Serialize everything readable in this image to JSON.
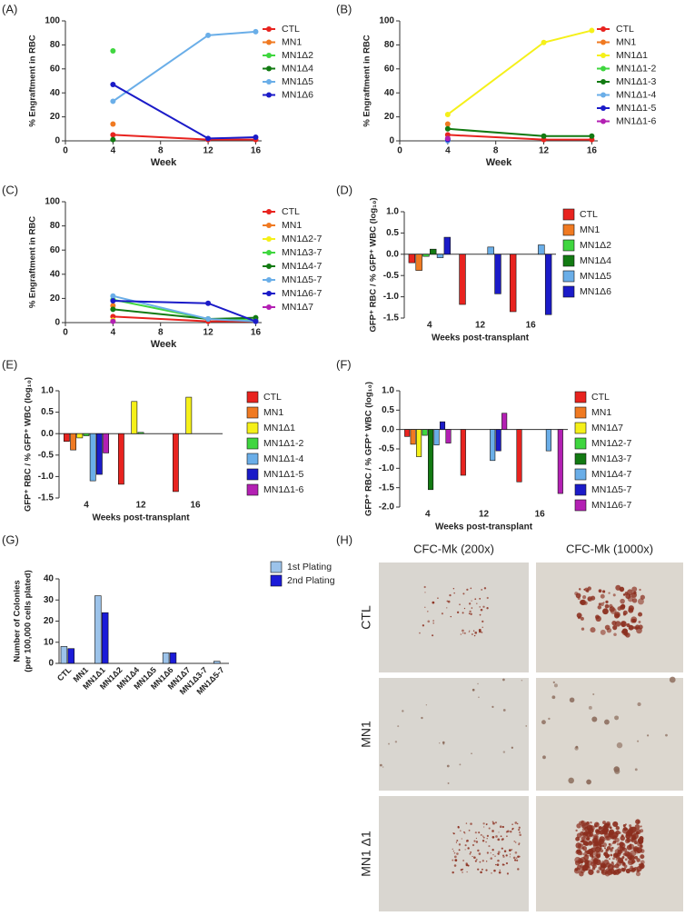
{
  "chart_data": [
    {
      "type": "line",
      "label": "(A)",
      "xlabel": "Week",
      "ylabel": "% Engraftment in RBC",
      "x": [
        4,
        12,
        16
      ],
      "xlim": [
        0,
        16.5
      ],
      "xticks": [
        0,
        4,
        8,
        12,
        16
      ],
      "ylim": [
        0,
        100
      ],
      "yticks": [
        0,
        20,
        40,
        60,
        80,
        100
      ],
      "series": [
        {
          "name": "CTL",
          "color": "#e8231f",
          "values": [
            5,
            1,
            1
          ]
        },
        {
          "name": "MN1",
          "color": "#f07a22",
          "values": [
            14,
            null,
            null
          ]
        },
        {
          "name": "MN1Δ2",
          "color": "#3fd63f",
          "values": [
            75,
            null,
            null
          ]
        },
        {
          "name": "MN1Δ4",
          "color": "#127a12",
          "values": [
            1,
            null,
            null
          ]
        },
        {
          "name": "MN1Δ5",
          "color": "#6aaee8",
          "values": [
            33,
            88,
            91
          ]
        },
        {
          "name": "MN1Δ6",
          "color": "#1b1bc8",
          "values": [
            47,
            2,
            3
          ]
        }
      ]
    },
    {
      "type": "line",
      "label": "(B)",
      "xlabel": "Week",
      "ylabel": "% Engraftment in RBC",
      "x": [
        4,
        12,
        16
      ],
      "xlim": [
        0,
        16.5
      ],
      "xticks": [
        0,
        4,
        8,
        12,
        16
      ],
      "ylim": [
        0,
        100
      ],
      "yticks": [
        0,
        20,
        40,
        60,
        80,
        100
      ],
      "series": [
        {
          "name": "CTL",
          "color": "#e8231f",
          "values": [
            5,
            1,
            1
          ]
        },
        {
          "name": "MN1",
          "color": "#f07a22",
          "values": [
            14,
            null,
            null
          ]
        },
        {
          "name": "MN1Δ1",
          "color": "#f5f019",
          "values": [
            22,
            82,
            92
          ]
        },
        {
          "name": "MN1Δ1-2",
          "color": "#3fd63f",
          "values": [
            2,
            null,
            null
          ]
        },
        {
          "name": "MN1Δ1-3",
          "color": "#127a12",
          "values": [
            10,
            4,
            4
          ]
        },
        {
          "name": "MN1Δ1-4",
          "color": "#6aaee8",
          "values": [
            0,
            null,
            null
          ]
        },
        {
          "name": "MN1Δ1-5",
          "color": "#1b1bc8",
          "values": [
            1,
            null,
            null
          ]
        },
        {
          "name": "MN1Δ1-6",
          "color": "#b320b3",
          "values": [
            2,
            null,
            null
          ]
        }
      ]
    },
    {
      "type": "line",
      "label": "(C)",
      "xlabel": "Week",
      "ylabel": "% Engraftment in RBC",
      "x": [
        4,
        12,
        16
      ],
      "xlim": [
        0,
        16.5
      ],
      "xticks": [
        0,
        4,
        8,
        12,
        16
      ],
      "ylim": [
        0,
        100
      ],
      "yticks": [
        0,
        20,
        40,
        60,
        80,
        100
      ],
      "series": [
        {
          "name": "CTL",
          "color": "#e8231f",
          "values": [
            5,
            1,
            1
          ]
        },
        {
          "name": "MN1",
          "color": "#f07a22",
          "values": [
            14,
            null,
            null
          ]
        },
        {
          "name": "MN1Δ2-7",
          "color": "#f5f019",
          "values": [
            2,
            null,
            null
          ]
        },
        {
          "name": "MN1Δ3-7",
          "color": "#3fd63f",
          "values": [
            19,
            3,
            2
          ]
        },
        {
          "name": "MN1Δ4-7",
          "color": "#127a12",
          "values": [
            11,
            3,
            4
          ]
        },
        {
          "name": "MN1Δ5-7",
          "color": "#6aaee8",
          "values": [
            22,
            3,
            1
          ]
        },
        {
          "name": "MN1Δ6-7",
          "color": "#1b1bc8",
          "values": [
            18,
            16,
            1
          ]
        },
        {
          "name": "MN1Δ7",
          "color": "#b320b3",
          "values": [
            1,
            null,
            null
          ]
        }
      ]
    },
    {
      "type": "bar",
      "label": "(D)",
      "xlabel": "Weeks post-transplant",
      "ylabel": "GFP⁺ RBC / % GFP⁺ WBC (log₁₀)",
      "categories": [
        "4",
        "12",
        "16"
      ],
      "ylim": [
        -1.5,
        1.0
      ],
      "yticks": [
        -1.5,
        {
          "value": -1.0,
          "label": "-1.0"
        },
        -0.5,
        {
          "value": 0,
          "label": "0.0"
        },
        0.5,
        {
          "value": 1.0,
          "label": "1.0"
        }
      ],
      "series": [
        {
          "name": "CTL",
          "color": "#e8231f",
          "values": [
            -0.2,
            -1.18,
            -1.35
          ]
        },
        {
          "name": "MN1",
          "color": "#f07a22",
          "values": [
            -0.38,
            null,
            null
          ]
        },
        {
          "name": "MN1Δ2",
          "color": "#3fd63f",
          "values": [
            -0.05,
            null,
            null
          ]
        },
        {
          "name": "MN1Δ4",
          "color": "#127a12",
          "values": [
            0.12,
            null,
            null
          ]
        },
        {
          "name": "MN1Δ5",
          "color": "#6aaee8",
          "values": [
            -0.08,
            0.17,
            0.22
          ]
        },
        {
          "name": "MN1Δ6",
          "color": "#1b1bc8",
          "values": [
            0.4,
            -0.93,
            -1.42
          ]
        }
      ]
    },
    {
      "type": "bar",
      "label": "(E)",
      "xlabel": "Weeks post-transplant",
      "ylabel": "GFP⁺ RBC / % GFP⁺ WBC (log₁₀)",
      "categories": [
        "4",
        "12",
        "16"
      ],
      "ylim": [
        -1.5,
        1.0
      ],
      "yticks": [
        -1.5,
        {
          "value": -1.0,
          "label": "-1.0"
        },
        -0.5,
        {
          "value": 0,
          "label": "0.0"
        },
        0.5,
        {
          "value": 1.0,
          "label": "1.0"
        }
      ],
      "series": [
        {
          "name": "CTL",
          "color": "#e8231f",
          "values": [
            -0.18,
            -1.18,
            -1.35
          ]
        },
        {
          "name": "MN1",
          "color": "#f07a22",
          "values": [
            -0.38,
            null,
            null
          ]
        },
        {
          "name": "MN1Δ1",
          "color": "#f5f019",
          "values": [
            -0.1,
            0.75,
            0.85
          ]
        },
        {
          "name": "MN1Δ1-2",
          "color": "#3fd63f",
          "values": [
            -0.05,
            0.03,
            null
          ]
        },
        {
          "name": "MN1Δ1-4",
          "color": "#6aaee8",
          "values": [
            -1.1,
            null,
            null
          ]
        },
        {
          "name": "MN1Δ1-5",
          "color": "#1b1bc8",
          "values": [
            -0.95,
            null,
            null
          ]
        },
        {
          "name": "MN1Δ1-6",
          "color": "#b320b3",
          "values": [
            -0.45,
            null,
            null
          ]
        }
      ]
    },
    {
      "type": "bar",
      "label": "(F)",
      "xlabel": "Weeks post-transplant",
      "ylabel": "GFP⁺ RBC / % GFP⁺ WBC (log₁₀)",
      "categories": [
        "4",
        "12",
        "16"
      ],
      "ylim": [
        -2.0,
        1.0
      ],
      "yticks": [
        {
          "value": -2.0,
          "label": "-2.0"
        },
        -1.5,
        {
          "value": -1.0,
          "label": "-1.0"
        },
        -0.5,
        {
          "value": 0,
          "label": "0.0"
        },
        0.5,
        {
          "value": 1.0,
          "label": "1.0"
        }
      ],
      "series": [
        {
          "name": "CTL",
          "color": "#e8231f",
          "values": [
            -0.18,
            -1.18,
            -1.35
          ]
        },
        {
          "name": "MN1",
          "color": "#f07a22",
          "values": [
            -0.38,
            null,
            null
          ]
        },
        {
          "name": "MN1Δ7",
          "color": "#f5f019",
          "values": [
            -0.7,
            null,
            null
          ]
        },
        {
          "name": "MN1Δ2-7",
          "color": "#3fd63f",
          "values": [
            -0.15,
            null,
            null
          ]
        },
        {
          "name": "MN1Δ3-7",
          "color": "#127a12",
          "values": [
            -1.55,
            null,
            null
          ]
        },
        {
          "name": "MN1Δ4-7",
          "color": "#6aaee8",
          "values": [
            -0.4,
            -0.8,
            -0.55
          ]
        },
        {
          "name": "MN1Δ5-7",
          "color": "#1b1bc8",
          "values": [
            0.2,
            -0.55,
            null
          ]
        },
        {
          "name": "MN1Δ6-7",
          "color": "#b320b3",
          "values": [
            -0.35,
            0.42,
            -1.65
          ]
        }
      ]
    },
    {
      "type": "bar",
      "label": "(G)",
      "ylabel": [
        "Number of Colonies",
        "(per 100,000 cells plated)"
      ],
      "categories": [
        "CTL",
        "MN1",
        "MN1Δ1",
        "MN1Δ2",
        "MN1Δ4",
        "MN1Δ5",
        "MN1Δ6",
        "MN1Δ7",
        "MN1Δ3-7",
        "MN1Δ5-7"
      ],
      "ylim": [
        0,
        40
      ],
      "yticks": [
        0,
        10,
        20,
        30,
        40
      ],
      "series": [
        {
          "name": "1st Plating",
          "color": "#9cc3ea",
          "values": [
            8,
            0,
            32,
            0,
            0,
            0,
            5,
            0,
            0,
            1
          ]
        },
        {
          "name": "2nd Plating",
          "color": "#1b1bd8",
          "values": [
            7,
            0,
            24,
            0,
            0,
            0,
            5,
            0,
            0,
            0
          ]
        }
      ]
    }
  ],
  "image_panel": {
    "label": "(H)",
    "columns": [
      "CFC-Mk (200x)",
      "CFC-Mk (1000x)"
    ],
    "rows": [
      "CTL",
      "MN1",
      "MN1 Δ1"
    ]
  }
}
